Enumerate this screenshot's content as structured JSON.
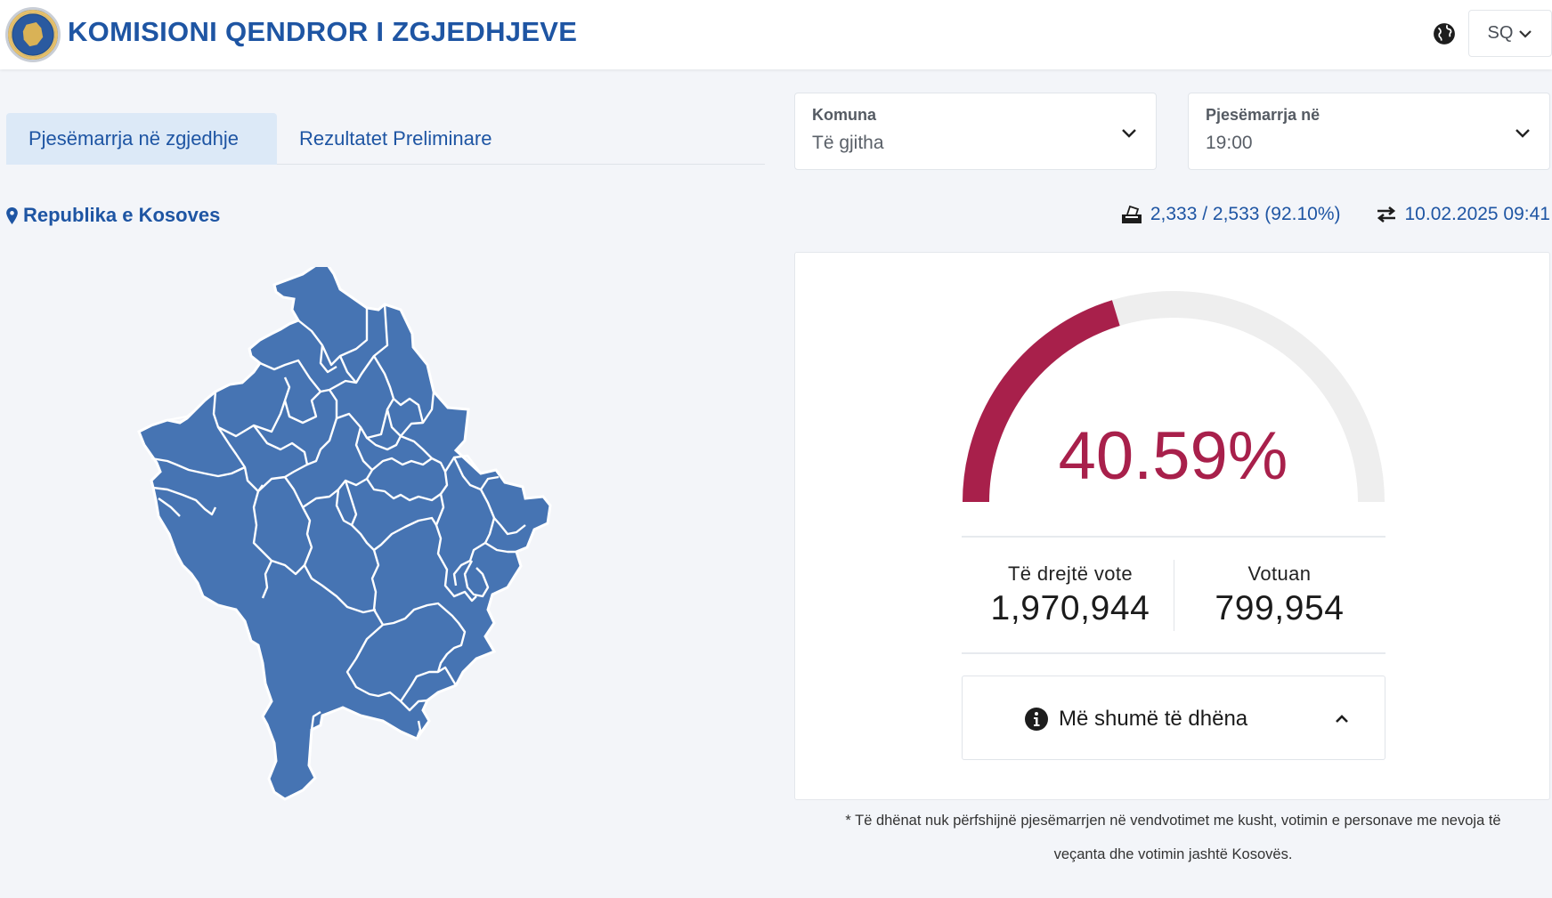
{
  "header": {
    "title": "KOMISIONI QENDROR I ZGJEDHJEVE",
    "language": "SQ"
  },
  "tabs": [
    {
      "label": "Pjesëmarrja në zgjedhje",
      "active": true
    },
    {
      "label": "Rezultatet Preliminare",
      "active": false
    }
  ],
  "filters": {
    "municipality": {
      "label": "Komuna",
      "value": "Të gjitha"
    },
    "time": {
      "label": "Pjesëmarrja në",
      "value": "19:00"
    }
  },
  "location": "Republika e Kosoves",
  "stats": {
    "stations": "2,333 / 2,533 (92.10%)",
    "updated": "10.02.2025 09:41"
  },
  "turnout": {
    "percent_label": "40.59%",
    "percent_value": 40.59,
    "eligible_label": "Të drejtë vote",
    "eligible_value": "1,970,944",
    "voted_label": "Votuan",
    "voted_value": "799,954",
    "more_label": "Më shumë të dhëna"
  },
  "colors": {
    "brand": "#1e55a3",
    "gauge_fill": "#a8204b",
    "gauge_track": "#eeeeee",
    "map_fill": "#4674b3"
  },
  "footnote": {
    "line1": "* Të dhënat nuk përfshijnë pjesëmarrjen në vendvotimet me kusht, votimin e personave me nevoja të",
    "line2": "veçanta dhe votimin jashtë Kosovës."
  },
  "icons": {
    "logo": "kqz-emblem-icon",
    "globe": "globe-icon",
    "chevron": "chevron-down-icon",
    "location": "map-marker-icon",
    "ballot": "ballot-box-icon",
    "sync": "exchange-arrows-icon",
    "info": "info-circle-icon",
    "collapse": "chevron-up-icon"
  }
}
